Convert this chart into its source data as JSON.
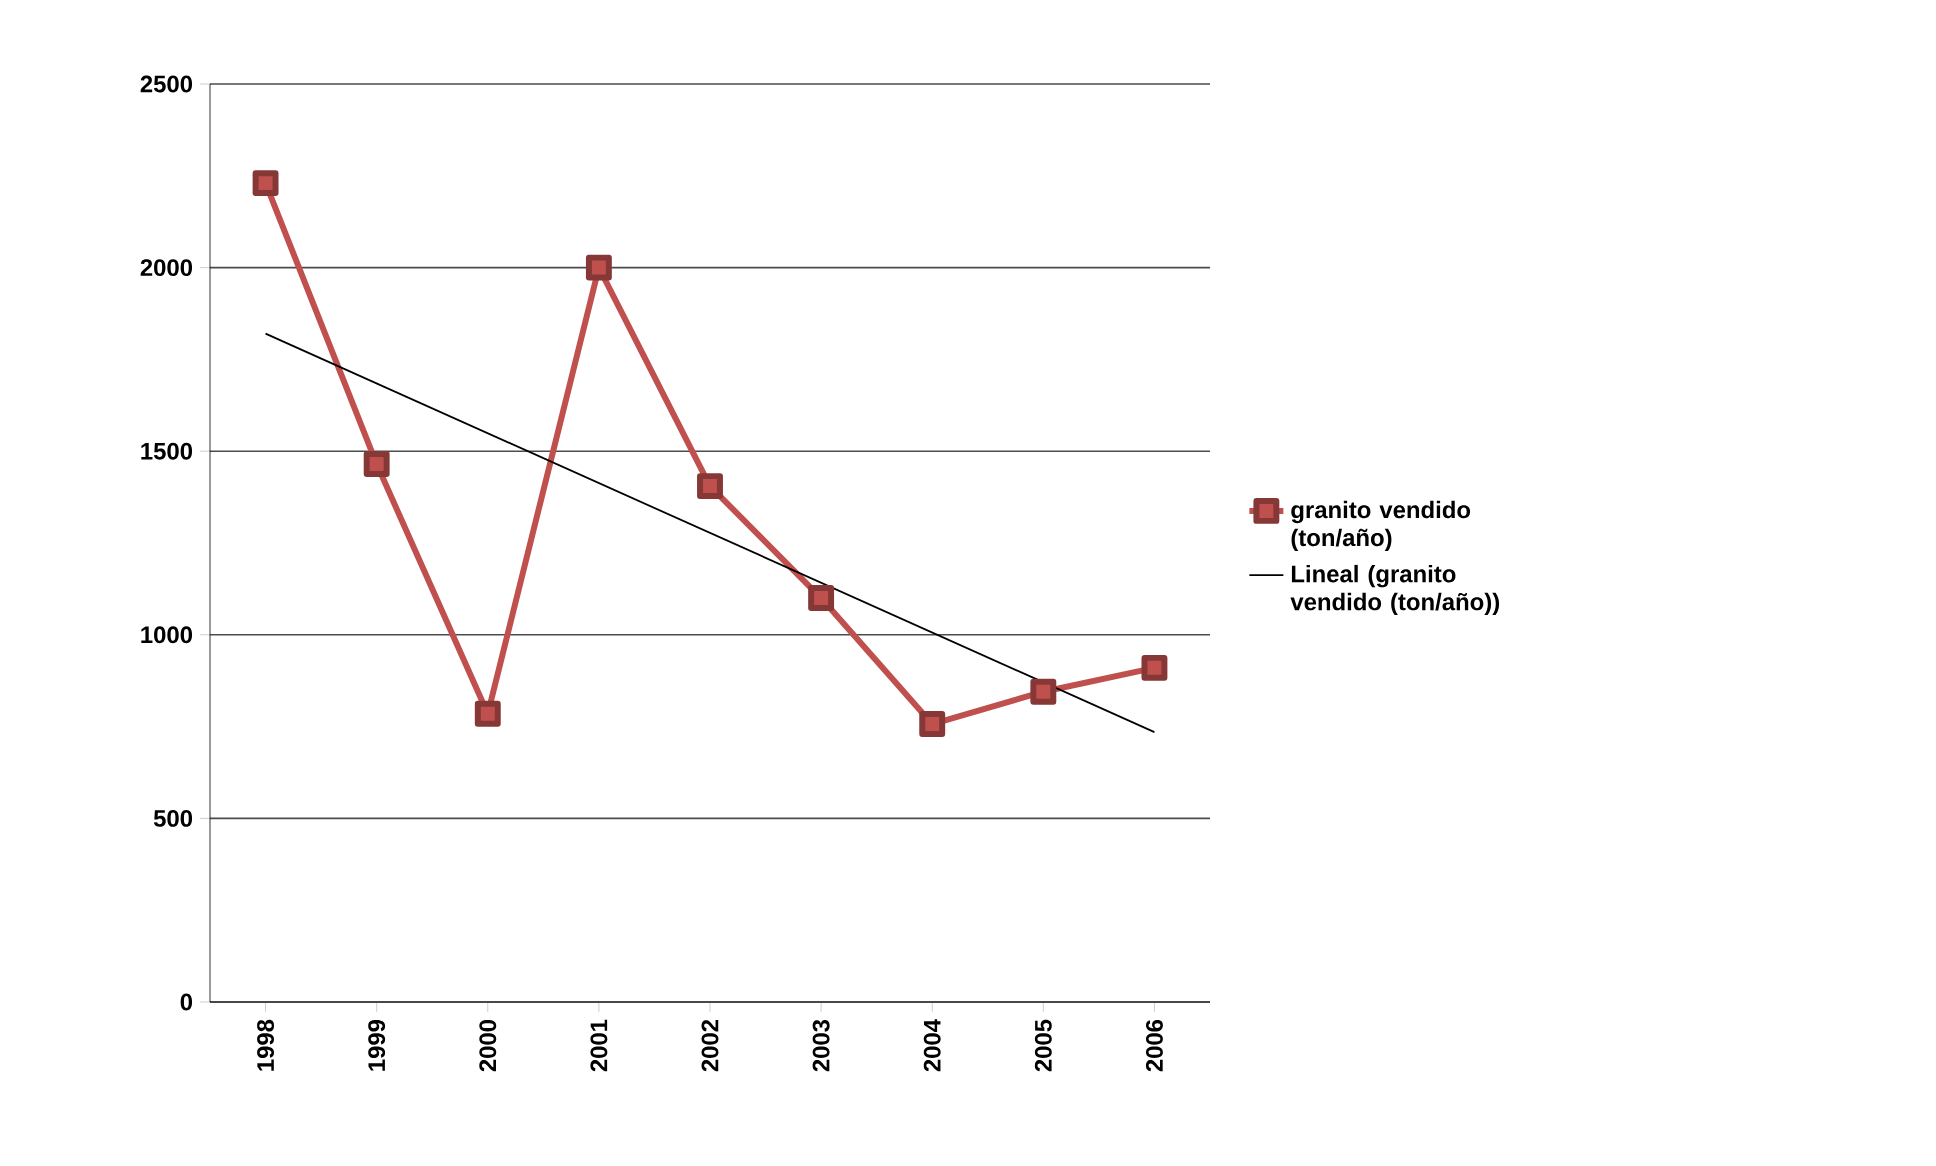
{
  "chart_data": {
    "type": "line",
    "x": [
      1998,
      1999,
      2000,
      2001,
      2002,
      2003,
      2004,
      2005,
      2006
    ],
    "series": [
      {
        "name": "granito vendido (ton/año)",
        "color": "#c0504d",
        "marker": "square",
        "values": [
          2230,
          1465,
          785,
          2000,
          1405,
          1100,
          757,
          845,
          910
        ]
      },
      {
        "name": "Lineal (granito vendido (ton/año))",
        "color": "#000000",
        "marker": "none",
        "x": [
          1998,
          2006
        ],
        "values": [
          1820,
          735
        ]
      }
    ],
    "xlim": [
      1997.5,
      2006.5
    ],
    "xticks": [
      1998,
      1999,
      2000,
      2001,
      2002,
      2003,
      2004,
      2005,
      2006
    ],
    "ylim": [
      0,
      2500
    ],
    "yticks": [
      0,
      500,
      1000,
      1500,
      2000,
      2500
    ],
    "grid": "y",
    "legend": "right",
    "line_style": "solid"
  }
}
